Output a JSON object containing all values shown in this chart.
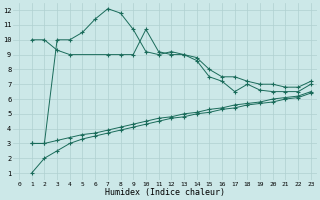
{
  "xlabel": "Humidex (Indice chaleur)",
  "bg_color": "#cce8e8",
  "grid_color": "#b0d0d0",
  "line_color": "#1a6b5a",
  "xlim": [
    -0.5,
    23.5
  ],
  "ylim": [
    0.5,
    12.5
  ],
  "xticks": [
    0,
    1,
    2,
    3,
    4,
    5,
    6,
    7,
    8,
    9,
    10,
    11,
    12,
    13,
    14,
    15,
    16,
    17,
    18,
    19,
    20,
    21,
    22,
    23
  ],
  "yticks": [
    1,
    2,
    3,
    4,
    5,
    6,
    7,
    8,
    9,
    10,
    11,
    12
  ],
  "line1_x": [
    1,
    2,
    3,
    4,
    5,
    6,
    7,
    8,
    9,
    10,
    11,
    12,
    13,
    14,
    15,
    16,
    17,
    18,
    19,
    20,
    21,
    22,
    23
  ],
  "line1_y": [
    3.0,
    3.0,
    10.0,
    10.0,
    10.5,
    11.4,
    12.1,
    11.8,
    10.7,
    9.2,
    9.0,
    9.2,
    9.0,
    8.6,
    7.5,
    7.2,
    6.5,
    7.0,
    6.6,
    6.5,
    6.5,
    6.5,
    7.0
  ],
  "line2_x": [
    1,
    2,
    3,
    4,
    7,
    8,
    9,
    10,
    11,
    12,
    13,
    14,
    15,
    16,
    17,
    18,
    19,
    20,
    21,
    22,
    23
  ],
  "line2_y": [
    10.0,
    10.0,
    9.3,
    9.0,
    9.0,
    9.0,
    9.0,
    10.7,
    9.2,
    9.0,
    9.0,
    8.8,
    8.0,
    7.5,
    7.5,
    7.2,
    7.0,
    7.0,
    6.8,
    6.8,
    7.2
  ],
  "line3_x": [
    1,
    2,
    3,
    4,
    5,
    6,
    7,
    8,
    9,
    10,
    11,
    12,
    13,
    14,
    15,
    16,
    17,
    18,
    19,
    20,
    21,
    22,
    23
  ],
  "line3_y": [
    3.0,
    3.0,
    3.2,
    3.4,
    3.6,
    3.7,
    3.9,
    4.1,
    4.3,
    4.5,
    4.7,
    4.8,
    5.0,
    5.1,
    5.3,
    5.4,
    5.6,
    5.7,
    5.8,
    6.0,
    6.1,
    6.2,
    6.5
  ],
  "line4_x": [
    1,
    2,
    3,
    4,
    5,
    6,
    7,
    8,
    9,
    10,
    11,
    12,
    13,
    14,
    15,
    16,
    17,
    18,
    19,
    20,
    21,
    22,
    23
  ],
  "line4_y": [
    1.0,
    2.0,
    2.5,
    3.0,
    3.3,
    3.5,
    3.7,
    3.9,
    4.1,
    4.3,
    4.5,
    4.7,
    4.8,
    5.0,
    5.1,
    5.3,
    5.4,
    5.6,
    5.7,
    5.8,
    6.0,
    6.1,
    6.4
  ]
}
